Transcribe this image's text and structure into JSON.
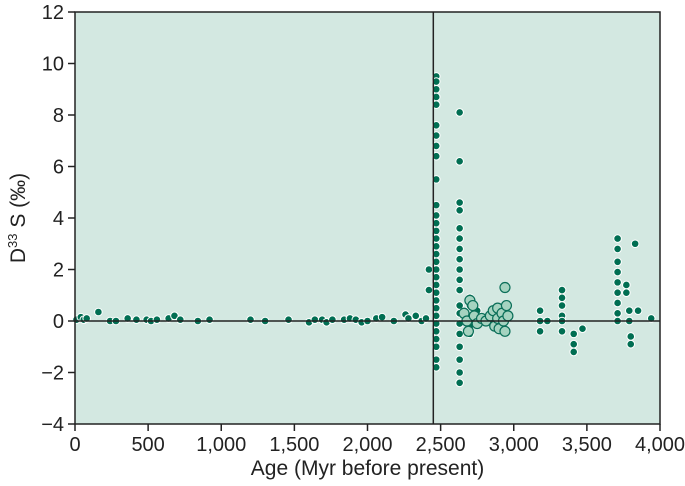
{
  "chart_data": {
    "type": "scatter",
    "xlabel": "Age (Myr before present)",
    "ylabel": {
      "prefix": "D",
      "sup": "33",
      "suffix": " S (‰)"
    },
    "xlim": [
      0,
      4000
    ],
    "ylim": [
      -4,
      12
    ],
    "xticks": [
      "0",
      "500",
      "1,000",
      "1,500",
      "2,000",
      "2,500",
      "3,000",
      "3,500",
      "4,000"
    ],
    "yticks": [
      "−4",
      "−2",
      "0",
      "2",
      "4",
      "6",
      "8",
      "10",
      "12"
    ],
    "grid": false,
    "vertical_line_x": 2450,
    "zero_line_y": 0,
    "colors": {
      "plot_background": "#d3e8e1",
      "small_point": "#006e52",
      "large_point_fill": "#a5d3c0",
      "large_point_edge": "#0a6e58",
      "line": "#222222"
    },
    "series": [
      {
        "marker": "small",
        "points": [
          [
            10,
            0.05
          ],
          [
            40,
            0.15
          ],
          [
            60,
            0.05
          ],
          [
            80,
            0.1
          ],
          [
            160,
            0.35
          ],
          [
            240,
            0.0
          ],
          [
            280,
            0.0
          ],
          [
            360,
            0.1
          ],
          [
            420,
            0.05
          ],
          [
            490,
            0.05
          ],
          [
            520,
            0.0
          ],
          [
            560,
            0.05
          ],
          [
            640,
            0.1
          ],
          [
            680,
            0.2
          ],
          [
            720,
            0.05
          ],
          [
            840,
            0.0
          ],
          [
            920,
            0.05
          ],
          [
            1200,
            0.05
          ],
          [
            1300,
            0.0
          ],
          [
            1460,
            0.05
          ],
          [
            1600,
            -0.05
          ],
          [
            1640,
            0.05
          ],
          [
            1690,
            0.05
          ],
          [
            1720,
            -0.05
          ],
          [
            1760,
            0.05
          ],
          [
            1840,
            0.05
          ],
          [
            1880,
            0.1
          ],
          [
            1920,
            0.05
          ],
          [
            1960,
            -0.05
          ],
          [
            2000,
            0.0
          ],
          [
            2060,
            0.1
          ],
          [
            2100,
            0.15
          ],
          [
            2180,
            0.0
          ],
          [
            2260,
            0.25
          ],
          [
            2280,
            0.1
          ],
          [
            2330,
            0.2
          ],
          [
            2370,
            0.0
          ],
          [
            2400,
            0.1
          ],
          [
            2420,
            1.2
          ],
          [
            2420,
            2.0
          ],
          [
            2470,
            9.5
          ],
          [
            2470,
            9.3
          ],
          [
            2470,
            9.0
          ],
          [
            2470,
            8.7
          ],
          [
            2470,
            8.4
          ],
          [
            2470,
            7.6
          ],
          [
            2470,
            7.2
          ],
          [
            2470,
            6.8
          ],
          [
            2470,
            6.4
          ],
          [
            2470,
            5.5
          ],
          [
            2470,
            4.5
          ],
          [
            2470,
            4.1
          ],
          [
            2470,
            3.8
          ],
          [
            2470,
            3.5
          ],
          [
            2470,
            3.2
          ],
          [
            2470,
            2.9
          ],
          [
            2470,
            2.6
          ],
          [
            2470,
            2.3
          ],
          [
            2470,
            2.0
          ],
          [
            2470,
            1.7
          ],
          [
            2470,
            1.4
          ],
          [
            2470,
            1.1
          ],
          [
            2470,
            0.8
          ],
          [
            2470,
            0.5
          ],
          [
            2470,
            0.2
          ],
          [
            2470,
            -0.1
          ],
          [
            2470,
            -0.4
          ],
          [
            2470,
            -0.7
          ],
          [
            2470,
            -1.0
          ],
          [
            2470,
            -1.5
          ],
          [
            2470,
            -1.8
          ],
          [
            2630,
            8.1
          ],
          [
            2630,
            6.2
          ],
          [
            2630,
            4.6
          ],
          [
            2630,
            4.3
          ],
          [
            2630,
            3.6
          ],
          [
            2630,
            3.2
          ],
          [
            2630,
            2.8
          ],
          [
            2630,
            2.4
          ],
          [
            2630,
            2.0
          ],
          [
            2630,
            1.6
          ],
          [
            2630,
            1.2
          ],
          [
            2630,
            0.6
          ],
          [
            2630,
            0.3
          ],
          [
            2630,
            -0.1
          ],
          [
            2630,
            -0.5
          ],
          [
            2630,
            -1.0
          ],
          [
            2630,
            -1.5
          ],
          [
            2630,
            -2.0
          ],
          [
            2630,
            -2.4
          ],
          [
            2700,
            0.9
          ],
          [
            2700,
            0.6
          ],
          [
            2700,
            0.2
          ],
          [
            2700,
            -0.2
          ],
          [
            2700,
            -0.5
          ],
          [
            2750,
            0.4
          ],
          [
            2780,
            0.0
          ],
          [
            3180,
            0.4
          ],
          [
            3180,
            0.0
          ],
          [
            3180,
            -0.4
          ],
          [
            3230,
            0.0
          ],
          [
            3330,
            1.2
          ],
          [
            3330,
            0.9
          ],
          [
            3330,
            0.6
          ],
          [
            3330,
            0.2
          ],
          [
            3330,
            0.0
          ],
          [
            3330,
            -0.4
          ],
          [
            3410,
            -0.5
          ],
          [
            3410,
            -0.9
          ],
          [
            3410,
            -1.2
          ],
          [
            3470,
            -0.3
          ],
          [
            3710,
            3.2
          ],
          [
            3710,
            2.8
          ],
          [
            3710,
            2.3
          ],
          [
            3710,
            1.9
          ],
          [
            3710,
            1.5
          ],
          [
            3710,
            1.1
          ],
          [
            3710,
            0.7
          ],
          [
            3710,
            0.3
          ],
          [
            3710,
            0.0
          ],
          [
            3770,
            1.4
          ],
          [
            3770,
            1.1
          ],
          [
            3790,
            0.4
          ],
          [
            3790,
            0.0
          ],
          [
            3800,
            -0.6
          ],
          [
            3800,
            -0.9
          ],
          [
            3830,
            3.0
          ],
          [
            3850,
            0.4
          ],
          [
            3940,
            0.1
          ]
        ]
      },
      {
        "marker": "large",
        "points": [
          [
            2660,
            0.3
          ],
          [
            2680,
            0.0
          ],
          [
            2690,
            -0.4
          ],
          [
            2700,
            0.8
          ],
          [
            2720,
            0.6
          ],
          [
            2730,
            0.2
          ],
          [
            2750,
            -0.1
          ],
          [
            2780,
            0.1
          ],
          [
            2810,
            0.0
          ],
          [
            2840,
            0.2
          ],
          [
            2860,
            0.4
          ],
          [
            2870,
            -0.2
          ],
          [
            2890,
            0.5
          ],
          [
            2890,
            0.1
          ],
          [
            2900,
            -0.3
          ],
          [
            2920,
            0.3
          ],
          [
            2930,
            0.0
          ],
          [
            2940,
            -0.4
          ],
          [
            2940,
            1.3
          ],
          [
            2950,
            0.6
          ],
          [
            2960,
            0.2
          ]
        ]
      }
    ]
  }
}
